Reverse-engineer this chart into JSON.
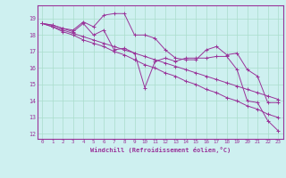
{
  "xlabel": "Windchill (Refroidissement éolien,°C)",
  "bg_color": "#cef0f0",
  "line_color": "#993399",
  "grid_color": "#aaddcc",
  "xlim": [
    -0.5,
    23.5
  ],
  "ylim": [
    11.7,
    19.8
  ],
  "yticks": [
    12,
    13,
    14,
    15,
    16,
    17,
    18,
    19
  ],
  "xticks": [
    0,
    1,
    2,
    3,
    4,
    5,
    6,
    7,
    8,
    9,
    10,
    11,
    12,
    13,
    14,
    15,
    16,
    17,
    18,
    19,
    20,
    21,
    22,
    23
  ],
  "series": [
    [
      18.7,
      18.6,
      18.4,
      18.3,
      18.8,
      18.5,
      19.2,
      19.3,
      19.3,
      18.0,
      18.0,
      17.8,
      17.1,
      16.6,
      16.5,
      16.5,
      17.1,
      17.3,
      16.8,
      16.9,
      15.9,
      15.5,
      13.9,
      13.9
    ],
    [
      18.7,
      18.6,
      18.4,
      18.2,
      18.7,
      18.0,
      18.3,
      17.1,
      17.2,
      16.9,
      14.8,
      16.4,
      16.6,
      16.4,
      16.6,
      16.6,
      16.6,
      16.7,
      16.7,
      15.9,
      14.0,
      13.9,
      12.8,
      12.2
    ],
    [
      18.7,
      18.5,
      18.2,
      18.0,
      17.7,
      17.5,
      17.3,
      17.0,
      16.8,
      16.5,
      16.2,
      16.0,
      15.7,
      15.5,
      15.2,
      15.0,
      14.7,
      14.5,
      14.2,
      14.0,
      13.7,
      13.5,
      13.2,
      13.0
    ],
    [
      18.7,
      18.5,
      18.3,
      18.1,
      17.9,
      17.7,
      17.5,
      17.3,
      17.1,
      16.9,
      16.7,
      16.5,
      16.3,
      16.1,
      15.9,
      15.7,
      15.5,
      15.3,
      15.1,
      14.9,
      14.7,
      14.5,
      14.3,
      14.1
    ]
  ]
}
